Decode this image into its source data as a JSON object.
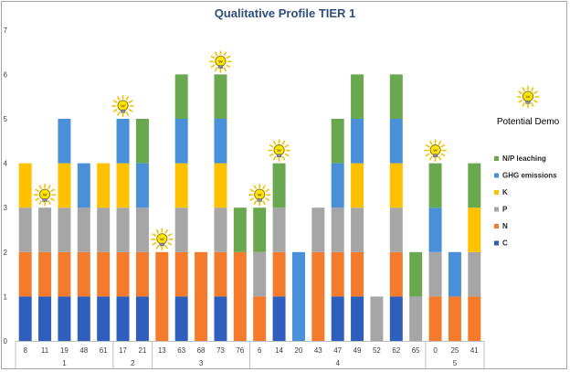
{
  "chart_data": {
    "type": "bar",
    "title": "Qualitative Profile TIER 1",
    "stacked": true,
    "ylim": [
      0,
      7
    ],
    "yticks": [
      0,
      1,
      2,
      3,
      4,
      5,
      6,
      7
    ],
    "grid": false,
    "legend_position": "right",
    "groups": [
      {
        "label": "1",
        "categories": [
          "8",
          "11",
          "19",
          "48",
          "61"
        ]
      },
      {
        "label": "2",
        "categories": [
          "17",
          "21"
        ]
      },
      {
        "label": "3",
        "categories": [
          "13",
          "63",
          "68",
          "73",
          "76"
        ]
      },
      {
        "label": "4",
        "categories": [
          "6",
          "14",
          "20",
          "43",
          "47",
          "49",
          "52",
          "62",
          "65"
        ]
      },
      {
        "label": "5",
        "categories": [
          "0",
          "25",
          "41"
        ]
      }
    ],
    "categories": [
      "8",
      "11",
      "19",
      "48",
      "61",
      "17",
      "21",
      "13",
      "63",
      "68",
      "73",
      "76",
      "6",
      "14",
      "20",
      "43",
      "47",
      "49",
      "52",
      "62",
      "65",
      "0",
      "25",
      "41"
    ],
    "series": [
      {
        "name": "C",
        "color": "#2e5fbd",
        "values": [
          1,
          1,
          1,
          1,
          1,
          1,
          1,
          0,
          1,
          0,
          1,
          0,
          0,
          1,
          0,
          0,
          1,
          1,
          0,
          1,
          0,
          0,
          0,
          0
        ]
      },
      {
        "name": "N",
        "color": "#f47b2b",
        "values": [
          1,
          1,
          1,
          1,
          1,
          1,
          1,
          2,
          1,
          2,
          1,
          2,
          1,
          1,
          0,
          2,
          1,
          1,
          0,
          1,
          0,
          1,
          1,
          1
        ]
      },
      {
        "name": "P",
        "color": "#a6a6a6",
        "values": [
          1,
          1,
          1,
          1,
          1,
          1,
          1,
          0,
          1,
          0,
          1,
          0,
          1,
          1,
          0,
          1,
          1,
          1,
          1,
          1,
          1,
          1,
          0,
          1
        ]
      },
      {
        "name": "K",
        "color": "#ffc000",
        "values": [
          1,
          0,
          1,
          0,
          1,
          1,
          0,
          0,
          1,
          0,
          1,
          0,
          0,
          0,
          0,
          0,
          0,
          1,
          0,
          1,
          0,
          0,
          0,
          1
        ]
      },
      {
        "name": "GHG emissions",
        "color": "#4a90d9",
        "values": [
          0,
          0,
          1,
          1,
          0,
          1,
          1,
          0,
          1,
          0,
          1,
          0,
          0,
          0,
          2,
          0,
          1,
          1,
          0,
          1,
          0,
          1,
          1,
          0
        ]
      },
      {
        "name": "N/P leaching",
        "color": "#6aa84f",
        "values": [
          0,
          0,
          0,
          0,
          0,
          0,
          1,
          0,
          1,
          0,
          1,
          1,
          1,
          1,
          0,
          0,
          1,
          1,
          0,
          1,
          1,
          1,
          0,
          1
        ]
      }
    ],
    "legend_order": [
      "N/P leaching",
      "GHG emissions",
      "K",
      "P",
      "N",
      "C"
    ],
    "demo_markers": [
      "11",
      "17",
      "13",
      "73",
      "6",
      "14",
      "0"
    ],
    "demo_label": "Potential Demo",
    "demo_icon": "lightbulb-icon"
  }
}
